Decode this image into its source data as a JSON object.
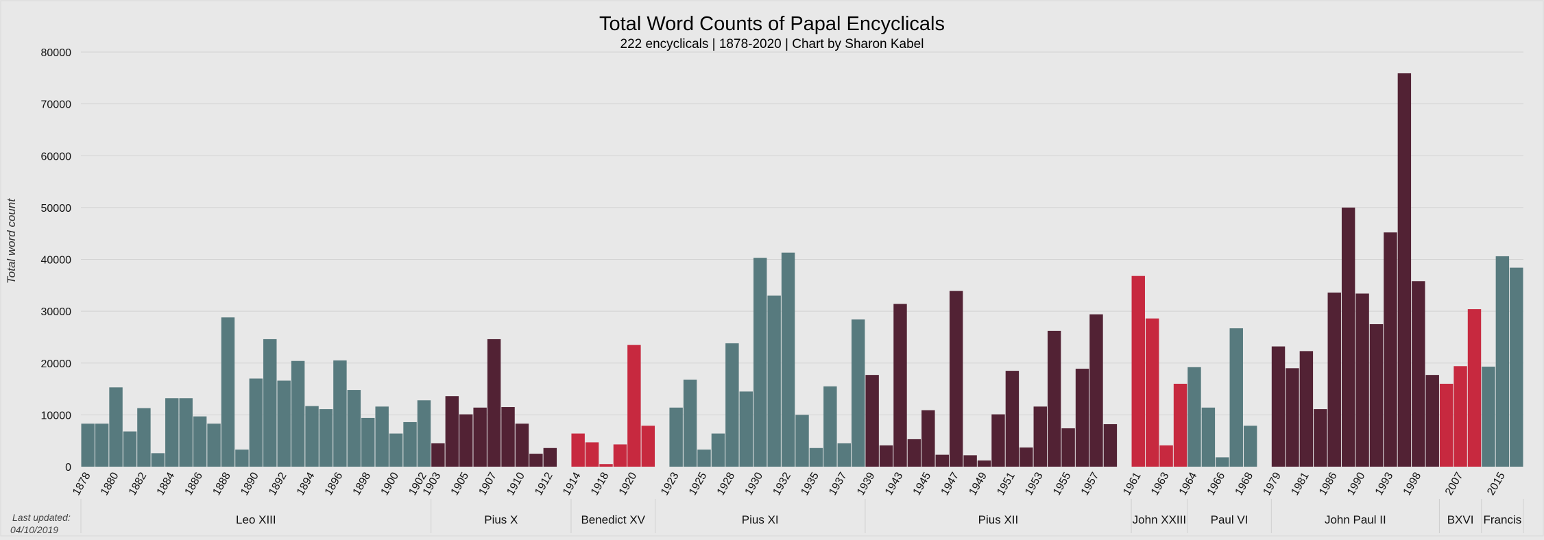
{
  "chart_data": {
    "type": "bar",
    "title": "Total Word Counts of Papal Encyclicals",
    "subtitle": "222 encyclicals | 1878-2020 | Chart by Sharon Kabel",
    "xlabel": "",
    "ylabel": "Total word count",
    "ylim": [
      0,
      80000
    ],
    "yticks": [
      0,
      10000,
      20000,
      30000,
      40000,
      50000,
      60000,
      70000,
      80000
    ],
    "grid": true,
    "legend": "none",
    "footnote": [
      "Last updated:",
      "04/10/2019"
    ],
    "colors": {
      "teal": "#577a7e",
      "maroon": "#522234",
      "red": "#c7293f",
      "background": "#e8e8e8",
      "grid": "#d2d2d2"
    },
    "popes": [
      {
        "name": "Leo XIII",
        "color": "teal",
        "years": [
          "1878",
          "1879",
          "1880",
          "1881",
          "1882",
          "1883",
          "1884",
          "1885",
          "1886",
          "1887",
          "1888",
          "1889",
          "1890",
          "1891",
          "1892",
          "1893",
          "1894",
          "1895",
          "1896",
          "1897",
          "1898",
          "1899",
          "1900",
          "1901",
          "1902"
        ],
        "values": [
          8300,
          8300,
          15300,
          6800,
          11300,
          2600,
          13200,
          13200,
          9700,
          8300,
          28800,
          3300,
          17000,
          24600,
          16600,
          20400,
          11700,
          11100,
          20500,
          14800,
          9400,
          11600,
          6400,
          8600,
          12800
        ],
        "year_labels": [
          "1878",
          "",
          "1880",
          "",
          "1882",
          "",
          "1884",
          "",
          "1886",
          "",
          "1888",
          "",
          "1890",
          "",
          "1892",
          "",
          "1894",
          "",
          "1896",
          "",
          "1898",
          "",
          "1900",
          "",
          "1902"
        ]
      },
      {
        "name": "Pius X",
        "color": "maroon",
        "years": [
          "1903",
          "1904",
          "1905",
          "1906",
          "1907",
          "1908",
          "1910",
          "1911",
          "1912",
          "1913"
        ],
        "values": [
          4500,
          13600,
          10100,
          11400,
          24600,
          11500,
          8300,
          2500,
          3600,
          0
        ],
        "year_labels": [
          "1903",
          "",
          "1905",
          "",
          "1907",
          "",
          "1910",
          "",
          "1912",
          ""
        ]
      },
      {
        "name": "Benedict XV",
        "color": "red",
        "years": [
          "1914",
          "1917",
          "1918",
          "1919",
          "1920",
          "1921"
        ],
        "values": [
          6400,
          4700,
          500,
          4300,
          23500,
          7900
        ],
        "year_labels": [
          "1914",
          "",
          "1918",
          "",
          "1920",
          ""
        ]
      },
      {
        "name": "Pius XI",
        "color": "teal",
        "years": [
          "1922",
          "1923",
          "1924",
          "1925",
          "1926",
          "1928",
          "1929",
          "1930",
          "1931",
          "1932",
          "1933",
          "1935",
          "1936",
          "1937",
          "1938"
        ],
        "values": [
          0,
          11400,
          16800,
          3300,
          6400,
          23800,
          14500,
          40300,
          33000,
          41300,
          10000,
          3600,
          15500,
          4500,
          28400
        ],
        "year_labels": [
          "",
          "1923",
          "",
          "1925",
          "",
          "1928",
          "",
          "1930",
          "",
          "1932",
          "",
          "1935",
          "",
          "1937",
          ""
        ]
      },
      {
        "name": "Pius XII",
        "color": "maroon",
        "years": [
          "1939",
          "1940",
          "1943",
          "1944",
          "1945",
          "1946",
          "1947",
          "1948",
          "1949",
          "1950",
          "1951",
          "1952",
          "1953",
          "1954",
          "1955",
          "1956",
          "1957",
          "1958",
          "1959"
        ],
        "values": [
          17700,
          4100,
          31400,
          5300,
          10900,
          2300,
          33900,
          2200,
          1200,
          10100,
          18500,
          3700,
          11600,
          26200,
          7400,
          18900,
          29400,
          8200,
          0
        ],
        "year_labels": [
          "1939",
          "",
          "1943",
          "",
          "1945",
          "",
          "1947",
          "",
          "1949",
          "",
          "1951",
          "",
          "1953",
          "",
          "1955",
          "",
          "1957",
          "",
          ""
        ]
      },
      {
        "name": "John XXIII",
        "color": "red",
        "years": [
          "1961",
          "1962",
          "1963",
          "1963b"
        ],
        "values": [
          36800,
          28600,
          4100,
          16000
        ],
        "year_labels": [
          "1961",
          "",
          "1963",
          ""
        ]
      },
      {
        "name": "Paul VI",
        "color": "teal",
        "years": [
          "1964",
          "1965",
          "1966",
          "1967",
          "1968",
          "1969"
        ],
        "values": [
          19200,
          11400,
          1800,
          26700,
          7900,
          0
        ],
        "year_labels": [
          "1964",
          "",
          "1966",
          "",
          "1968",
          ""
        ]
      },
      {
        "name": "John Paul II",
        "color": "maroon",
        "years": [
          "1979",
          "1980",
          "1981",
          "1984",
          "1986",
          "1988",
          "1990",
          "1991",
          "1993",
          "1995",
          "1998",
          "2003"
        ],
        "values": [
          23200,
          19000,
          22300,
          11100,
          33600,
          50000,
          33400,
          27500,
          45200,
          75900,
          35800,
          17700
        ],
        "year_labels": [
          "1979",
          "",
          "1981",
          "",
          "1986",
          "",
          "1990",
          "",
          "1993",
          "",
          "1998",
          ""
        ]
      },
      {
        "name": "BXVI",
        "color": "red",
        "years": [
          "2005",
          "2007",
          "2009"
        ],
        "values": [
          16000,
          19400,
          30400
        ],
        "year_labels": [
          "",
          "2007",
          ""
        ]
      },
      {
        "name": "Francis",
        "color": "teal",
        "years": [
          "2013",
          "2015",
          "2016"
        ],
        "values": [
          19300,
          40600,
          38400
        ],
        "year_labels": [
          "",
          "2015",
          ""
        ]
      }
    ]
  }
}
